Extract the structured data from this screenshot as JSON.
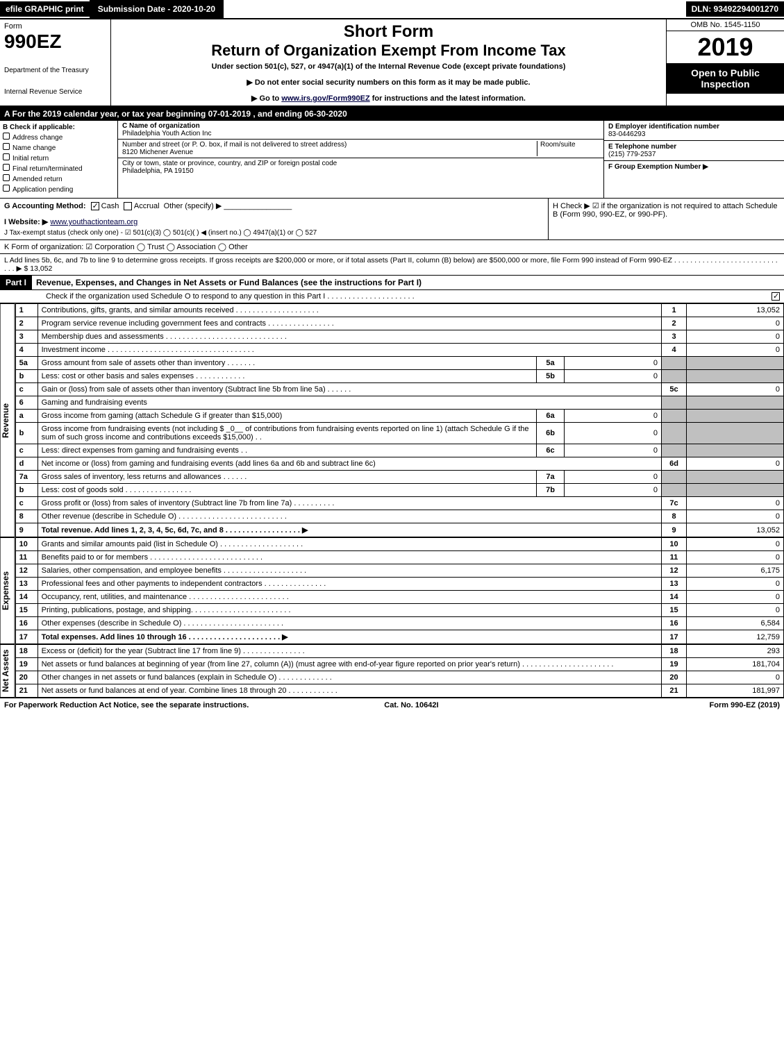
{
  "topbar": {
    "efile": "efile GRAPHIC print",
    "submission_label": "Submission Date - 2020-10-20",
    "dln": "DLN: 93492294001270"
  },
  "header": {
    "form_word": "Form",
    "form_number": "990EZ",
    "dept1": "Department of the Treasury",
    "dept2": "Internal Revenue Service",
    "title1": "Short Form",
    "title2": "Return of Organization Exempt From Income Tax",
    "subtitle": "Under section 501(c), 527, or 4947(a)(1) of the Internal Revenue Code (except private foundations)",
    "note1": "▶ Do not enter social security numbers on this form as it may be made public.",
    "note2_pre": "▶ Go to ",
    "note2_link": "www.irs.gov/Form990EZ",
    "note2_post": " for instructions and the latest information.",
    "omb": "OMB No. 1545-1150",
    "year": "2019",
    "open": "Open to Public Inspection"
  },
  "period": "A For the 2019 calendar year, or tax year beginning 07-01-2019 , and ending 06-30-2020",
  "boxB": {
    "title": "B  Check if applicable:",
    "items": [
      "Address change",
      "Name change",
      "Initial return",
      "Final return/terminated",
      "Amended return",
      "Application pending"
    ]
  },
  "boxC": {
    "name_label": "C Name of organization",
    "name": "Philadelphia Youth Action Inc",
    "street_label": "Number and street (or P. O. box, if mail is not delivered to street address)",
    "room_label": "Room/suite",
    "street": "8120 Michener Avenue",
    "city_label": "City or town, state or province, country, and ZIP or foreign postal code",
    "city": "Philadelphia, PA  19150"
  },
  "boxD": {
    "label": "D Employer identification number",
    "value": "83-0446293"
  },
  "boxE": {
    "label": "E Telephone number",
    "value": "(215) 779-2537"
  },
  "boxF": {
    "label": "F Group Exemption Number  ▶",
    "value": ""
  },
  "rowG": {
    "label": "G Accounting Method:",
    "cash": "Cash",
    "accrual": "Accrual",
    "other": "Other (specify) ▶"
  },
  "rowH": {
    "text": "H  Check ▶ ☑ if the organization is not required to attach Schedule B (Form 990, 990-EZ, or 990-PF)."
  },
  "rowI": {
    "label": "I Website: ▶",
    "value": "www.youthactionteam.org"
  },
  "rowJ": {
    "text": "J Tax-exempt status (check only one) - ☑ 501(c)(3)  ◯ 501(c)(  ) ◀ (insert no.)  ◯ 4947(a)(1) or  ◯ 527"
  },
  "rowK": {
    "text": "K Form of organization:  ☑ Corporation  ◯ Trust  ◯ Association  ◯ Other"
  },
  "rowL": {
    "text": "L Add lines 5b, 6c, and 7b to line 9 to determine gross receipts. If gross receipts are $200,000 or more, or if total assets (Part II, column (B) below) are $500,000 or more, file Form 990 instead of Form 990-EZ . . . . . . . . . . . . . . . . . . . . . . . . . . . . .  ▶ $ 13,052"
  },
  "part1": {
    "label": "Part I",
    "title": "Revenue, Expenses, and Changes in Net Assets or Fund Balances (see the instructions for Part I)",
    "check_note": "Check if the organization used Schedule O to respond to any question in this Part I . . . . . . . . . . . . . . . . . . . . ."
  },
  "revenue_label": "Revenue",
  "expenses_label": "Expenses",
  "netassets_label": "Net Assets",
  "revenue_lines": [
    {
      "n": "1",
      "desc": "Contributions, gifts, grants, and similar amounts received . . . . . . . . . . . . . . . . . . . .",
      "box": "1",
      "amt": "13,052"
    },
    {
      "n": "2",
      "desc": "Program service revenue including government fees and contracts . . . . . . . . . . . . . . . .",
      "box": "2",
      "amt": "0"
    },
    {
      "n": "3",
      "desc": "Membership dues and assessments . . . . . . . . . . . . . . . . . . . . . . . . . . . . .",
      "box": "3",
      "amt": "0"
    },
    {
      "n": "4",
      "desc": "Investment income . . . . . . . . . . . . . . . . . . . . . . . . . . . . . . . . . . .",
      "box": "4",
      "amt": "0"
    },
    {
      "n": "5a",
      "desc": "Gross amount from sale of assets other than inventory . . . . . . .",
      "sub": "5a",
      "subval": "0",
      "shaded": true
    },
    {
      "n": "b",
      "desc": "Less: cost or other basis and sales expenses . . . . . . . . . . . .",
      "sub": "5b",
      "subval": "0",
      "shaded": true
    },
    {
      "n": "c",
      "desc": "Gain or (loss) from sale of assets other than inventory (Subtract line 5b from line 5a) . . . . . .",
      "box": "5c",
      "amt": "0"
    },
    {
      "n": "6",
      "desc": "Gaming and fundraising events",
      "shaded": true,
      "noboxes": true
    },
    {
      "n": "a",
      "desc": "Gross income from gaming (attach Schedule G if greater than $15,000)",
      "sub": "6a",
      "subval": "0",
      "shaded": true
    },
    {
      "n": "b",
      "desc": "Gross income from fundraising events (not including $ _0__ of contributions from fundraising events reported on line 1) (attach Schedule G if the sum of such gross income and contributions exceeds $15,000) . .",
      "sub": "6b",
      "subval": "0",
      "shaded": true
    },
    {
      "n": "c",
      "desc": "Less: direct expenses from gaming and fundraising events   . .",
      "sub": "6c",
      "subval": "0",
      "shaded": true
    },
    {
      "n": "d",
      "desc": "Net income or (loss) from gaming and fundraising events (add lines 6a and 6b and subtract line 6c)",
      "box": "6d",
      "amt": "0"
    },
    {
      "n": "7a",
      "desc": "Gross sales of inventory, less returns and allowances . . . . . .",
      "sub": "7a",
      "subval": "0",
      "shaded": true
    },
    {
      "n": "b",
      "desc": "Less: cost of goods sold   . . . . . . . . . . . . . . . .",
      "sub": "7b",
      "subval": "0",
      "shaded": true
    },
    {
      "n": "c",
      "desc": "Gross profit or (loss) from sales of inventory (Subtract line 7b from line 7a) . . . . . . . . . .",
      "box": "7c",
      "amt": "0"
    },
    {
      "n": "8",
      "desc": "Other revenue (describe in Schedule O) . . . . . . . . . . . . . . . . . . . . . . . . . .",
      "box": "8",
      "amt": "0"
    },
    {
      "n": "9",
      "desc": "Total revenue. Add lines 1, 2, 3, 4, 5c, 6d, 7c, and 8 . . . . . . . . . . . . . . . . . .  ▶",
      "box": "9",
      "amt": "13,052",
      "bold": true
    }
  ],
  "expense_lines": [
    {
      "n": "10",
      "desc": "Grants and similar amounts paid (list in Schedule O) . . . . . . . . . . . . . . . . . . . .",
      "box": "10",
      "amt": "0"
    },
    {
      "n": "11",
      "desc": "Benefits paid to or for members    . . . . . . . . . . . . . . . . . . . . . . . . . . .",
      "box": "11",
      "amt": "0"
    },
    {
      "n": "12",
      "desc": "Salaries, other compensation, and employee benefits . . . . . . . . . . . . . . . . . . . .",
      "box": "12",
      "amt": "6,175"
    },
    {
      "n": "13",
      "desc": "Professional fees and other payments to independent contractors . . . . . . . . . . . . . . .",
      "box": "13",
      "amt": "0"
    },
    {
      "n": "14",
      "desc": "Occupancy, rent, utilities, and maintenance . . . . . . . . . . . . . . . . . . . . . . . .",
      "box": "14",
      "amt": "0"
    },
    {
      "n": "15",
      "desc": "Printing, publications, postage, and shipping. . . . . . . . . . . . . . . . . . . . . . . .",
      "box": "15",
      "amt": "0"
    },
    {
      "n": "16",
      "desc": "Other expenses (describe in Schedule O)   . . . . . . . . . . . . . . . . . . . . . . . .",
      "box": "16",
      "amt": "6,584"
    },
    {
      "n": "17",
      "desc": "Total expenses. Add lines 10 through 16   . . . . . . . . . . . . . . . . . . . . . .  ▶",
      "box": "17",
      "amt": "12,759",
      "bold": true
    }
  ],
  "netasset_lines": [
    {
      "n": "18",
      "desc": "Excess or (deficit) for the year (Subtract line 17 from line 9)    . . . . . . . . . . . . . . .",
      "box": "18",
      "amt": "293"
    },
    {
      "n": "19",
      "desc": "Net assets or fund balances at beginning of year (from line 27, column (A)) (must agree with end-of-year figure reported on prior year's return) . . . . . . . . . . . . . . . . . . . . . .",
      "box": "19",
      "amt": "181,704"
    },
    {
      "n": "20",
      "desc": "Other changes in net assets or fund balances (explain in Schedule O) . . . . . . . . . . . . .",
      "box": "20",
      "amt": "0"
    },
    {
      "n": "21",
      "desc": "Net assets or fund balances at end of year. Combine lines 18 through 20 . . . . . . . . . . . .",
      "box": "21",
      "amt": "181,997"
    }
  ],
  "footer": {
    "left": "For Paperwork Reduction Act Notice, see the separate instructions.",
    "mid": "Cat. No. 10642I",
    "right": "Form 990-EZ (2019)"
  }
}
